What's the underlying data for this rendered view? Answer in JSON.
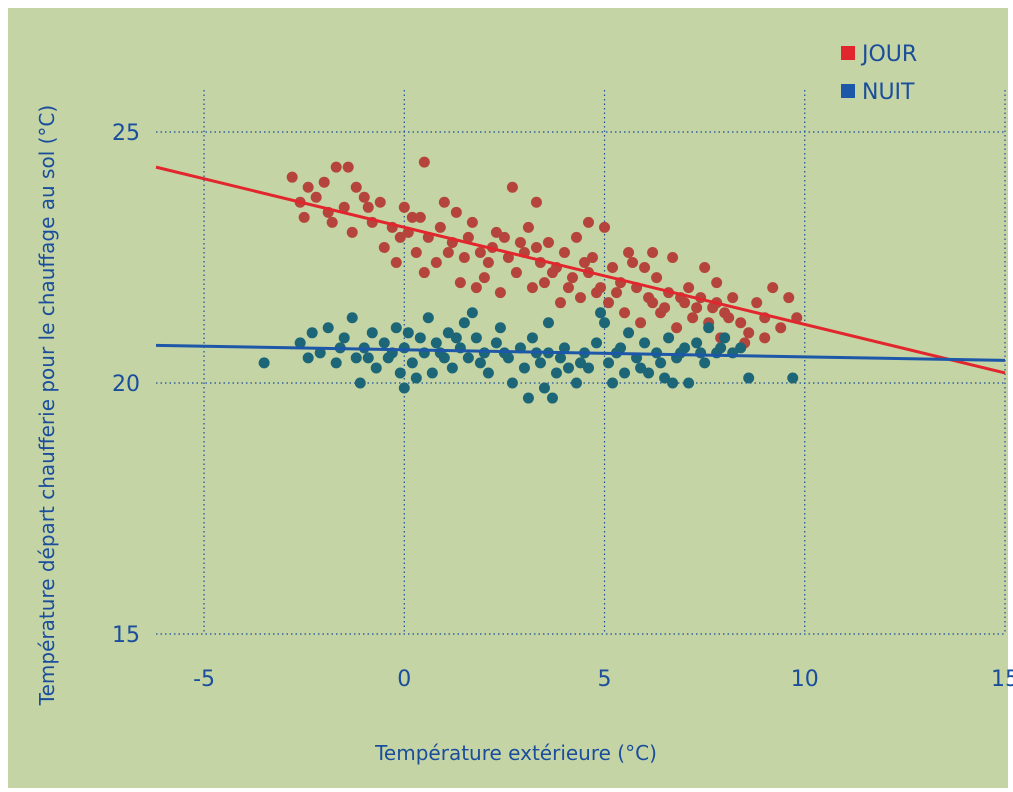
{
  "chart_data": {
    "type": "scatter",
    "title": "",
    "xlabel": "Température extérieure (°C)",
    "ylabel": "Température départ chaufferie pour le chauffage au sol (°C)",
    "xlim": [
      -6.2,
      15
    ],
    "ylim": [
      15,
      25
    ],
    "xticks": [
      -5,
      0,
      5,
      10,
      15
    ],
    "yticks": [
      15,
      20,
      25
    ],
    "grid": true,
    "legend": "top-right",
    "background": "#c4d4a4",
    "series": [
      {
        "name": "JOUR",
        "color": "#e2262d",
        "point_color": "#b5443c",
        "trend": {
          "x": [
            -6.2,
            15
          ],
          "y": [
            24.3,
            20.2
          ]
        },
        "points": [
          [
            -2.8,
            24.1
          ],
          [
            -2.6,
            23.6
          ],
          [
            -2.5,
            23.3
          ],
          [
            -2.2,
            23.7
          ],
          [
            -2.0,
            24.0
          ],
          [
            -1.8,
            23.2
          ],
          [
            -1.7,
            24.3
          ],
          [
            -1.5,
            23.5
          ],
          [
            -1.4,
            24.3
          ],
          [
            -1.2,
            23.9
          ],
          [
            -1.0,
            23.7
          ],
          [
            -0.8,
            23.2
          ],
          [
            -0.6,
            23.6
          ],
          [
            -0.5,
            22.7
          ],
          [
            -0.3,
            23.1
          ],
          [
            -0.2,
            22.4
          ],
          [
            0.0,
            23.5
          ],
          [
            0.1,
            23.0
          ],
          [
            0.3,
            22.6
          ],
          [
            0.4,
            23.3
          ],
          [
            0.6,
            22.9
          ],
          [
            0.8,
            22.4
          ],
          [
            0.9,
            23.1
          ],
          [
            1.0,
            23.6
          ],
          [
            1.2,
            22.8
          ],
          [
            1.3,
            23.4
          ],
          [
            1.5,
            22.5
          ],
          [
            1.6,
            22.9
          ],
          [
            1.7,
            23.2
          ],
          [
            1.9,
            22.6
          ],
          [
            2.0,
            22.1
          ],
          [
            2.2,
            22.7
          ],
          [
            2.3,
            23.0
          ],
          [
            2.4,
            21.8
          ],
          [
            2.6,
            22.5
          ],
          [
            2.7,
            23.9
          ],
          [
            2.8,
            22.2
          ],
          [
            3.0,
            22.6
          ],
          [
            3.1,
            23.1
          ],
          [
            3.2,
            21.9
          ],
          [
            3.4,
            22.4
          ],
          [
            3.5,
            22.0
          ],
          [
            3.6,
            22.8
          ],
          [
            3.8,
            22.3
          ],
          [
            3.9,
            21.6
          ],
          [
            4.0,
            22.6
          ],
          [
            4.2,
            22.1
          ],
          [
            4.3,
            22.9
          ],
          [
            4.4,
            21.7
          ],
          [
            4.6,
            22.2
          ],
          [
            4.7,
            22.5
          ],
          [
            4.8,
            21.8
          ],
          [
            5.0,
            23.1
          ],
          [
            5.1,
            21.6
          ],
          [
            5.2,
            22.3
          ],
          [
            5.4,
            22.0
          ],
          [
            5.5,
            21.4
          ],
          [
            5.6,
            22.6
          ],
          [
            5.8,
            21.9
          ],
          [
            5.9,
            21.2
          ],
          [
            6.0,
            22.3
          ],
          [
            6.2,
            21.6
          ],
          [
            6.3,
            22.1
          ],
          [
            6.4,
            21.4
          ],
          [
            6.6,
            21.8
          ],
          [
            6.7,
            22.5
          ],
          [
            6.8,
            21.1
          ],
          [
            7.0,
            21.6
          ],
          [
            7.1,
            21.9
          ],
          [
            7.2,
            21.3
          ],
          [
            7.4,
            21.7
          ],
          [
            7.5,
            22.3
          ],
          [
            7.6,
            21.2
          ],
          [
            7.8,
            21.6
          ],
          [
            7.9,
            20.9
          ],
          [
            8.0,
            21.4
          ],
          [
            8.2,
            21.7
          ],
          [
            8.4,
            21.2
          ],
          [
            8.6,
            21.0
          ],
          [
            8.8,
            21.6
          ],
          [
            9.0,
            21.3
          ],
          [
            9.2,
            21.9
          ],
          [
            9.4,
            21.1
          ],
          [
            9.6,
            21.7
          ],
          [
            9.8,
            21.3
          ],
          [
            -2.4,
            23.9
          ],
          [
            -1.9,
            23.4
          ],
          [
            -1.3,
            23.0
          ],
          [
            -0.9,
            23.5
          ],
          [
            0.2,
            23.3
          ],
          [
            0.5,
            22.2
          ],
          [
            1.1,
            22.6
          ],
          [
            1.4,
            22.0
          ],
          [
            2.1,
            22.4
          ],
          [
            2.5,
            22.9
          ],
          [
            2.9,
            22.8
          ],
          [
            3.3,
            22.7
          ],
          [
            3.7,
            22.2
          ],
          [
            4.1,
            21.9
          ],
          [
            4.5,
            22.4
          ],
          [
            4.9,
            21.9
          ],
          [
            5.3,
            21.8
          ],
          [
            5.7,
            22.4
          ],
          [
            6.1,
            21.7
          ],
          [
            6.5,
            21.5
          ],
          [
            6.9,
            21.7
          ],
          [
            7.3,
            21.5
          ],
          [
            7.7,
            21.5
          ],
          [
            8.1,
            21.3
          ],
          [
            8.5,
            20.8
          ],
          [
            0.5,
            24.4
          ],
          [
            3.3,
            23.6
          ],
          [
            -0.1,
            22.9
          ],
          [
            1.8,
            21.9
          ],
          [
            4.6,
            23.2
          ],
          [
            6.2,
            22.6
          ],
          [
            7.8,
            22.0
          ],
          [
            9.0,
            20.9
          ]
        ]
      },
      {
        "name": "NUIT",
        "color": "#1d57a8",
        "point_color": "#1c6678",
        "trend": {
          "x": [
            -6.2,
            15
          ],
          "y": [
            20.75,
            20.45
          ]
        },
        "points": [
          [
            -3.5,
            20.4
          ],
          [
            -2.6,
            20.8
          ],
          [
            -2.3,
            21.0
          ],
          [
            -2.1,
            20.6
          ],
          [
            -1.9,
            21.1
          ],
          [
            -1.7,
            20.4
          ],
          [
            -1.5,
            20.9
          ],
          [
            -1.3,
            21.3
          ],
          [
            -1.2,
            20.5
          ],
          [
            -1.1,
            20.0
          ],
          [
            -1.0,
            20.7
          ],
          [
            -0.8,
            21.0
          ],
          [
            -0.7,
            20.3
          ],
          [
            -0.5,
            20.8
          ],
          [
            -0.4,
            20.5
          ],
          [
            -0.2,
            21.1
          ],
          [
            -0.1,
            20.2
          ],
          [
            0.0,
            20.7
          ],
          [
            0.1,
            21.0
          ],
          [
            0.2,
            20.4
          ],
          [
            0.4,
            20.9
          ],
          [
            0.5,
            20.6
          ],
          [
            0.6,
            21.3
          ],
          [
            0.7,
            20.2
          ],
          [
            0.8,
            20.8
          ],
          [
            1.0,
            20.5
          ],
          [
            1.1,
            21.0
          ],
          [
            1.2,
            20.3
          ],
          [
            1.4,
            20.7
          ],
          [
            1.5,
            21.2
          ],
          [
            1.6,
            20.5
          ],
          [
            1.8,
            20.9
          ],
          [
            2.0,
            20.6
          ],
          [
            2.1,
            20.2
          ],
          [
            2.3,
            20.8
          ],
          [
            2.4,
            21.1
          ],
          [
            2.6,
            20.5
          ],
          [
            2.7,
            20.0
          ],
          [
            2.9,
            20.7
          ],
          [
            3.0,
            20.3
          ],
          [
            3.1,
            19.7
          ],
          [
            3.2,
            20.9
          ],
          [
            3.4,
            20.4
          ],
          [
            3.5,
            19.9
          ],
          [
            3.6,
            20.6
          ],
          [
            3.7,
            19.7
          ],
          [
            3.8,
            20.2
          ],
          [
            4.0,
            20.7
          ],
          [
            4.1,
            20.3
          ],
          [
            4.3,
            20.0
          ],
          [
            4.5,
            20.6
          ],
          [
            4.6,
            20.3
          ],
          [
            4.8,
            20.8
          ],
          [
            5.0,
            21.2
          ],
          [
            5.1,
            20.4
          ],
          [
            5.2,
            20.0
          ],
          [
            5.4,
            20.7
          ],
          [
            5.5,
            20.2
          ],
          [
            5.6,
            21.0
          ],
          [
            5.8,
            20.5
          ],
          [
            6.0,
            20.8
          ],
          [
            6.1,
            20.2
          ],
          [
            6.3,
            20.6
          ],
          [
            6.5,
            20.1
          ],
          [
            6.6,
            20.9
          ],
          [
            6.8,
            20.5
          ],
          [
            7.0,
            20.7
          ],
          [
            7.1,
            20.0
          ],
          [
            7.3,
            20.8
          ],
          [
            7.5,
            20.4
          ],
          [
            7.6,
            21.1
          ],
          [
            7.8,
            20.6
          ],
          [
            8.0,
            20.9
          ],
          [
            8.2,
            20.6
          ],
          [
            8.6,
            20.1
          ],
          [
            9.7,
            20.1
          ],
          [
            -1.6,
            20.7
          ],
          [
            -0.9,
            20.5
          ],
          [
            -0.3,
            20.6
          ],
          [
            0.3,
            20.1
          ],
          [
            0.9,
            20.6
          ],
          [
            1.3,
            20.9
          ],
          [
            1.9,
            20.4
          ],
          [
            2.5,
            20.6
          ],
          [
            3.3,
            20.6
          ],
          [
            3.9,
            20.5
          ],
          [
            4.4,
            20.4
          ],
          [
            5.3,
            20.6
          ],
          [
            5.9,
            20.3
          ],
          [
            6.4,
            20.4
          ],
          [
            6.9,
            20.6
          ],
          [
            7.4,
            20.6
          ],
          [
            7.9,
            20.7
          ],
          [
            8.4,
            20.7
          ],
          [
            -2.4,
            20.5
          ],
          [
            0.0,
            19.9
          ],
          [
            1.7,
            21.4
          ],
          [
            3.6,
            21.2
          ],
          [
            4.9,
            21.4
          ],
          [
            6.7,
            20.0
          ]
        ]
      }
    ]
  }
}
